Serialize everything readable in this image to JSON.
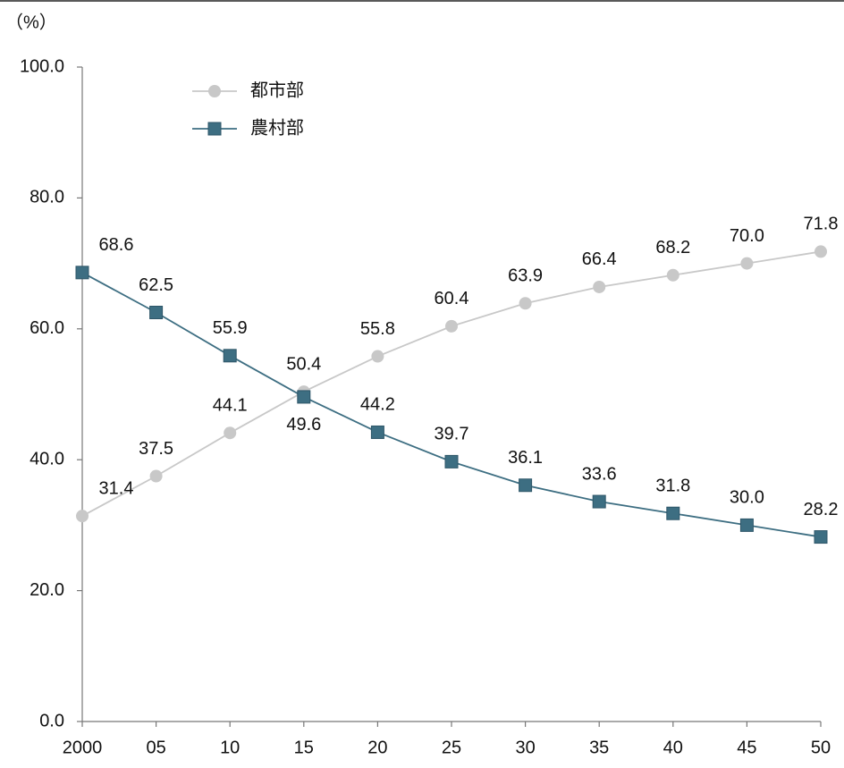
{
  "chart_data": {
    "type": "line",
    "ylabel": "（%）",
    "categories": [
      "2000",
      "05",
      "10",
      "15",
      "20",
      "25",
      "30",
      "35",
      "40",
      "45",
      "50"
    ],
    "series": [
      {
        "name": "都市部",
        "color": "#c8c8c8",
        "marker": "circle",
        "values": [
          31.4,
          37.5,
          44.1,
          50.4,
          55.8,
          60.4,
          63.9,
          66.4,
          68.2,
          70.0,
          71.8
        ],
        "value_labels": [
          "31.4",
          "37.5",
          "44.1",
          "50.4",
          "55.8",
          "60.4",
          "63.9",
          "66.4",
          "68.2",
          "70.0",
          "71.8"
        ]
      },
      {
        "name": "農村部",
        "color": "#3d6e82",
        "marker": "square",
        "values": [
          68.6,
          62.5,
          55.9,
          49.6,
          44.2,
          39.7,
          36.1,
          33.6,
          31.8,
          30.0,
          28.2
        ],
        "value_labels": [
          "68.6",
          "62.5",
          "55.9",
          "49.6",
          "44.2",
          "39.7",
          "36.1",
          "33.6",
          "31.8",
          "30.0",
          "28.2"
        ]
      }
    ],
    "ylim": [
      0,
      100
    ],
    "yticks": [
      {
        "value": 0,
        "label": "0.0"
      },
      {
        "value": 20,
        "label": "20.0"
      },
      {
        "value": 40,
        "label": "40.0"
      },
      {
        "value": 60,
        "label": "60.0"
      },
      {
        "value": 80,
        "label": "80.0"
      },
      {
        "value": 100,
        "label": "100.0"
      }
    ],
    "grid": false,
    "legend": "top-left"
  }
}
